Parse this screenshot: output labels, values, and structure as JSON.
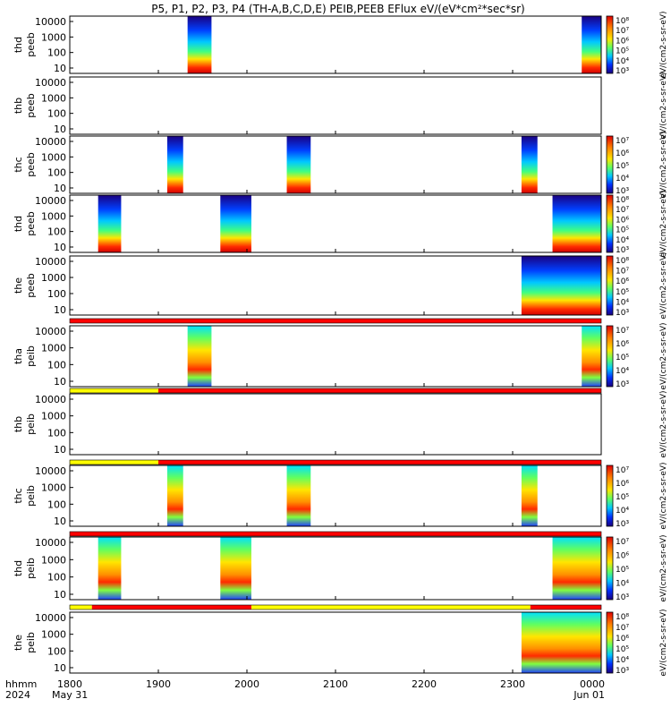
{
  "title": "P5, P1, P2, P3, P4 (TH-A,B,C,D,E) PEIB,PEEB EFlux eV/(eV*cm²*sec*sr)",
  "colors": {
    "frame": "#000000",
    "flag_red": "#ff0000",
    "flag_yellow": "#ffff00",
    "spec_high": "#ff2a00",
    "spec_mid": "#ffe600",
    "spec_low": "#00c8ff",
    "spec_min": "#1a0080"
  },
  "xaxis": {
    "ticks": [
      "1800",
      "1900",
      "2000",
      "2100",
      "2200",
      "2300",
      "0000"
    ],
    "tick_values": [
      18,
      19,
      20,
      21,
      22,
      23,
      24
    ],
    "range_hours": [
      18,
      24
    ],
    "row_labels": [
      "hhmm",
      "2024"
    ],
    "start_date": "May 31",
    "end_date": "Jun 01"
  },
  "chart_data": [
    {
      "type": "heatmap",
      "ylabel": [
        "thc",
        "peeb"
      ],
      "yticks": [
        "10000",
        "1000",
        "100",
        "10"
      ],
      "yscale": "log",
      "active": [
        [
          19.1,
          19.28
        ],
        [
          20.45,
          20.72
        ],
        [
          23.1,
          23.28
        ]
      ],
      "cbar_ticks": [
        "10⁷",
        "10⁶",
        "10⁵",
        "10⁴",
        "10³"
      ],
      "cbar_title": "eV/(cm2-s-sr-eV)",
      "style": "electron"
    },
    {
      "type": "heatmap",
      "ylabel": [
        "thd",
        "peeb"
      ],
      "yticks": [
        "10000",
        "1000",
        "100",
        "10"
      ],
      "yscale": "log",
      "active": [
        [
          18.32,
          18.58
        ],
        [
          19.7,
          20.05
        ],
        [
          23.45,
          24
        ]
      ],
      "cbar_ticks": [
        "10⁸",
        "10⁷",
        "10⁶",
        "10⁵",
        "10⁴",
        "10³"
      ],
      "cbar_title": "eV/(cm2-s-sr-eV)",
      "style": "electron"
    },
    {
      "type": "heatmap",
      "ylabel": [
        "the",
        "peeb"
      ],
      "yticks": [
        "10000",
        "1000",
        "100",
        "10"
      ],
      "yscale": "log",
      "active": [
        [
          23.1,
          24
        ]
      ],
      "cbar_ticks": [
        "10⁸",
        "10⁷",
        "10⁶",
        "10⁵",
        "10⁴",
        "10³"
      ],
      "cbar_title": "eV/(cm2-s-sr-eV)",
      "style": "electron"
    },
    {
      "type": "heatmap",
      "ylabel": [
        "tha",
        "peib"
      ],
      "yticks": [
        "10000",
        "1000",
        "100",
        "10"
      ],
      "yscale": "log",
      "active": [
        [
          19.33,
          19.6
        ],
        [
          23.78,
          24
        ]
      ],
      "cbar_ticks": [
        "10⁷",
        "10⁶",
        "10⁵",
        "10⁴",
        "10³"
      ],
      "cbar_title": "eV/(cm2-s-sr-eV)",
      "style": "ion"
    },
    {
      "type": "heatmap",
      "ylabel": [
        "thb",
        "peib"
      ],
      "yticks": [
        "10000",
        "1000",
        "100",
        "10"
      ],
      "yscale": "log",
      "active": [],
      "cbar_ticks": [],
      "cbar_title": "eV/(cm2-s-sr-eV)",
      "style": "ion"
    },
    {
      "type": "heatmap",
      "ylabel": [
        "thc",
        "peib"
      ],
      "yticks": [
        "10000",
        "1000",
        "100",
        "10"
      ],
      "yscale": "log",
      "active": [
        [
          19.1,
          19.28
        ],
        [
          20.45,
          20.72
        ],
        [
          23.1,
          23.28
        ]
      ],
      "cbar_ticks": [
        "10⁷",
        "10⁶",
        "10⁵",
        "10⁴",
        "10³"
      ],
      "cbar_title": "eV/(cm2-s-sr-eV)",
      "style": "ion"
    },
    {
      "type": "heatmap",
      "ylabel": [
        "thd",
        "peib"
      ],
      "yticks": [
        "10000",
        "1000",
        "100",
        "10"
      ],
      "yscale": "log",
      "active": [
        [
          18.32,
          18.58
        ],
        [
          19.7,
          20.05
        ],
        [
          23.45,
          24
        ]
      ],
      "cbar_ticks": [
        "10⁷",
        "10⁶",
        "10⁵",
        "10⁴",
        "10³"
      ],
      "cbar_title": "eV/(cm2-s-sr-eV)",
      "style": "ion"
    },
    {
      "type": "heatmap",
      "ylabel": [
        "the",
        "peib"
      ],
      "yticks": [
        "10000",
        "1000",
        "100",
        "10"
      ],
      "yscale": "log",
      "active": [
        [
          23.1,
          24
        ]
      ],
      "cbar_ticks": [
        "10⁸",
        "10⁷",
        "10⁶",
        "10⁵",
        "10⁴",
        "10³"
      ],
      "cbar_title": "eV/(cm2-s-sr-eV)",
      "style": "ion"
    }
  ],
  "top_panels": [
    {
      "ylabel": [
        "thd",
        "peeb"
      ],
      "yticks": [
        "10000",
        "1000",
        "100",
        "10"
      ],
      "yscale": "log",
      "active": [
        [
          19.33,
          19.6
        ],
        [
          23.78,
          24
        ]
      ],
      "cbar_ticks": [
        "10⁸",
        "10⁷",
        "10⁶",
        "10⁵",
        "10⁴",
        "10³"
      ],
      "cbar_title": "eV/(cm2-s-sr-eV)",
      "style": "electron"
    },
    {
      "ylabel": [
        "thb",
        "peeb"
      ],
      "yticks": [
        "10000",
        "1000",
        "100",
        "10"
      ],
      "yscale": "log",
      "active": [],
      "cbar_ticks": [],
      "cbar_title": "eV/(cm2-s-sr-eV)",
      "style": "electron"
    }
  ],
  "flag_bars": [
    {
      "segments": [
        [
          18,
          24,
          "red"
        ]
      ]
    },
    {
      "segments": [
        [
          18,
          19,
          "yellow"
        ],
        [
          19,
          24,
          "red"
        ]
      ]
    },
    {
      "segments": [
        [
          18,
          19,
          "yellow"
        ],
        [
          19,
          24,
          "red"
        ]
      ]
    },
    {
      "segments": [
        [
          18,
          24,
          "red"
        ]
      ]
    },
    {
      "segments": [
        [
          18,
          18.25,
          "yellow"
        ],
        [
          18.25,
          20.05,
          "red"
        ],
        [
          20.05,
          23.2,
          "yellow"
        ],
        [
          23.2,
          24,
          "red"
        ]
      ]
    }
  ],
  "labels": {
    "shared_cbar_suffix": "(All Qs)"
  }
}
